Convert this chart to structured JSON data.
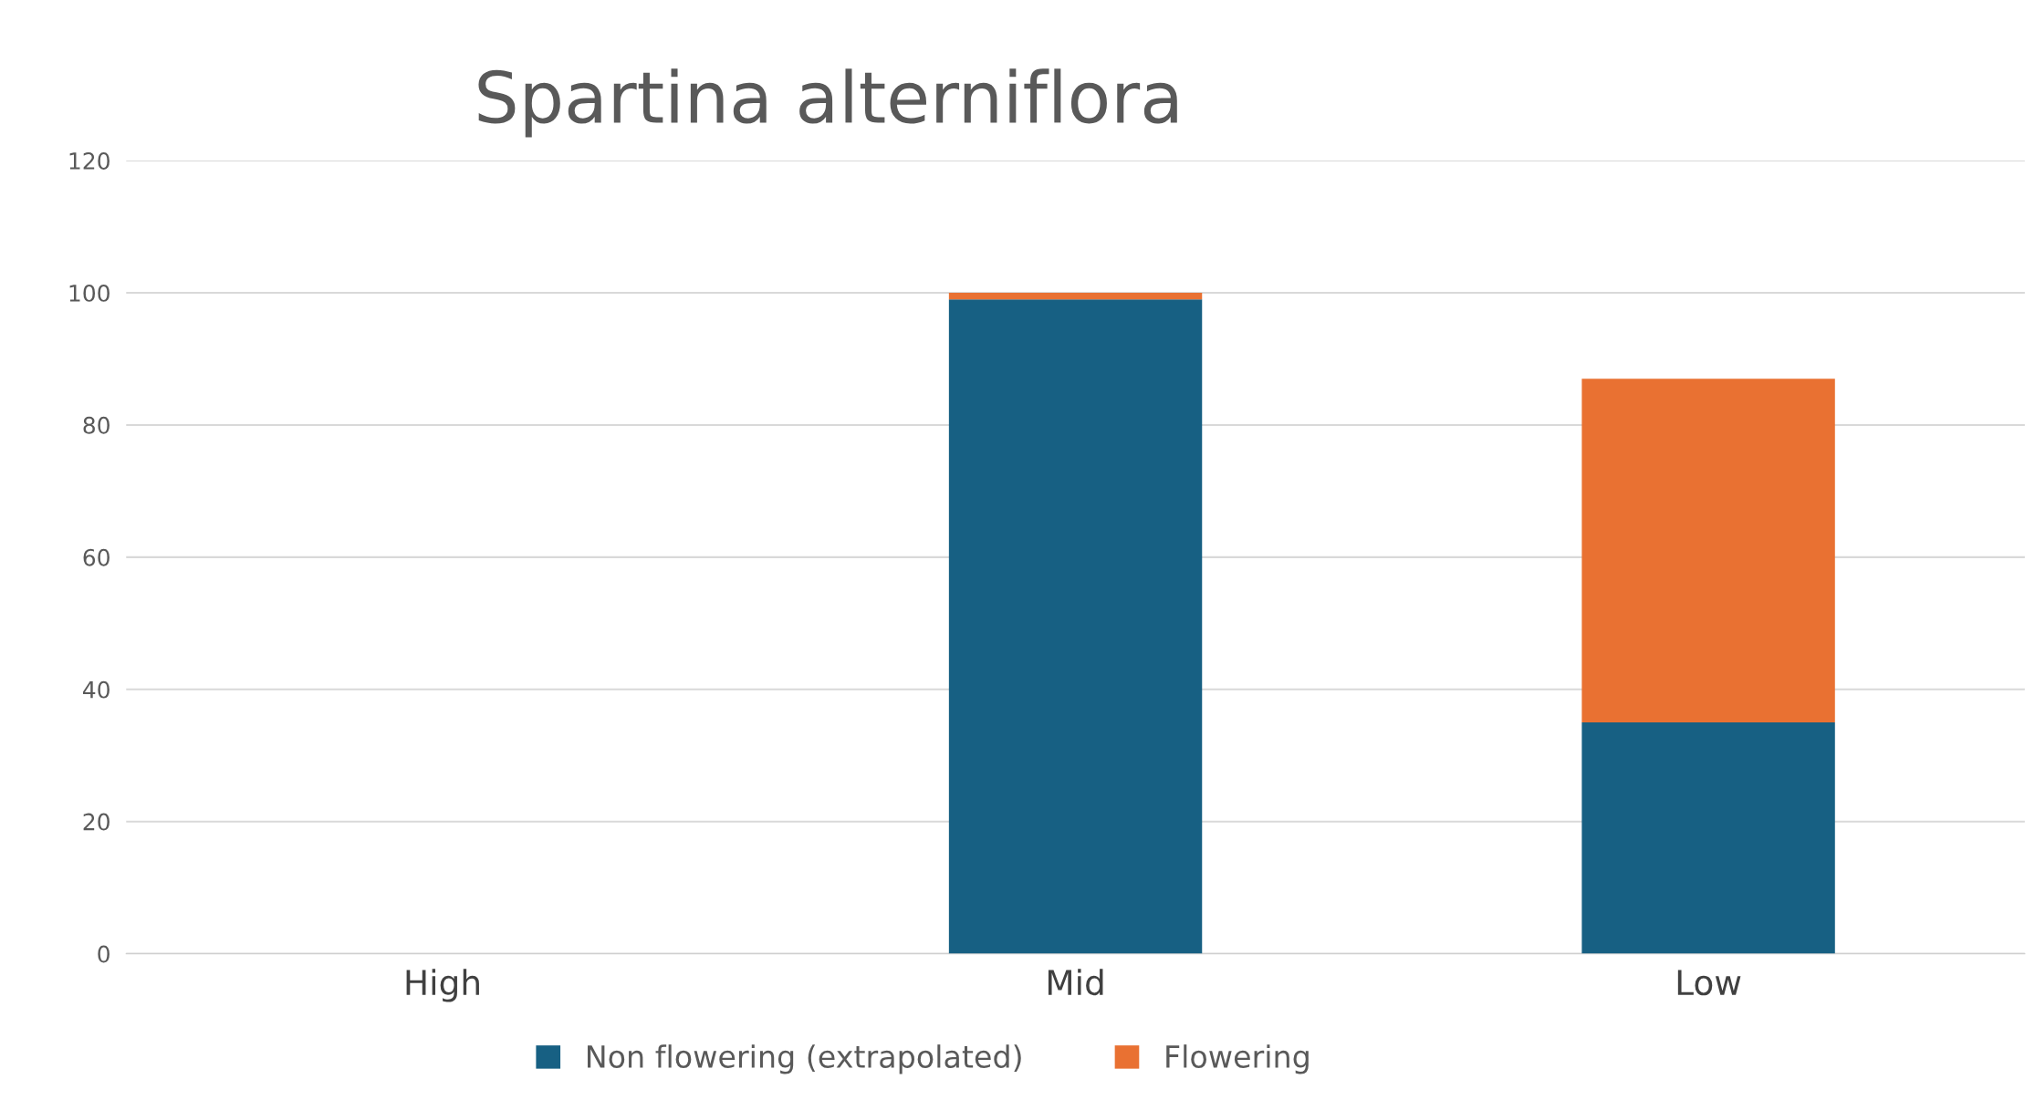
{
  "chart_data": {
    "type": "bar",
    "title": "Spartina alterniflora",
    "stacked": true,
    "categories": [
      "High",
      "Mid",
      "Low"
    ],
    "series": [
      {
        "name": "Non flowering (extrapolated)",
        "color": "#176083",
        "values": [
          0,
          99,
          35
        ]
      },
      {
        "name": "Flowering",
        "color": "#e97132",
        "values": [
          0,
          1,
          52
        ]
      }
    ],
    "ylim": [
      0,
      120
    ],
    "yticks": [
      0,
      20,
      40,
      60,
      80,
      100,
      120
    ],
    "grid": "y",
    "legend": "bottom"
  }
}
